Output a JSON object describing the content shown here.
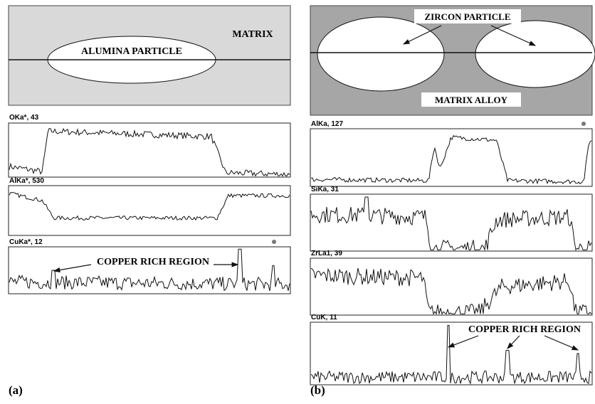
{
  "panels": [
    {
      "label": "(a)",
      "schematic": {
        "particle": "ALUMINA PARTICLE",
        "matrix": "MATRIX"
      },
      "scans": [
        "OKa*, 43",
        "AlKa*, 530",
        "CuKa*, 12"
      ],
      "annotation": "COPPER RICH REGION"
    },
    {
      "label": "(b)",
      "schematic": {
        "particle": "ZIRCON PARTICLE",
        "matrix": "MATRIX ALLOY"
      },
      "scans": [
        "AlKa, 127",
        "SiKa, 31",
        "ZrLa1, 39",
        "CuK, 11"
      ],
      "annotation": "COPPER RICH REGION"
    }
  ]
}
